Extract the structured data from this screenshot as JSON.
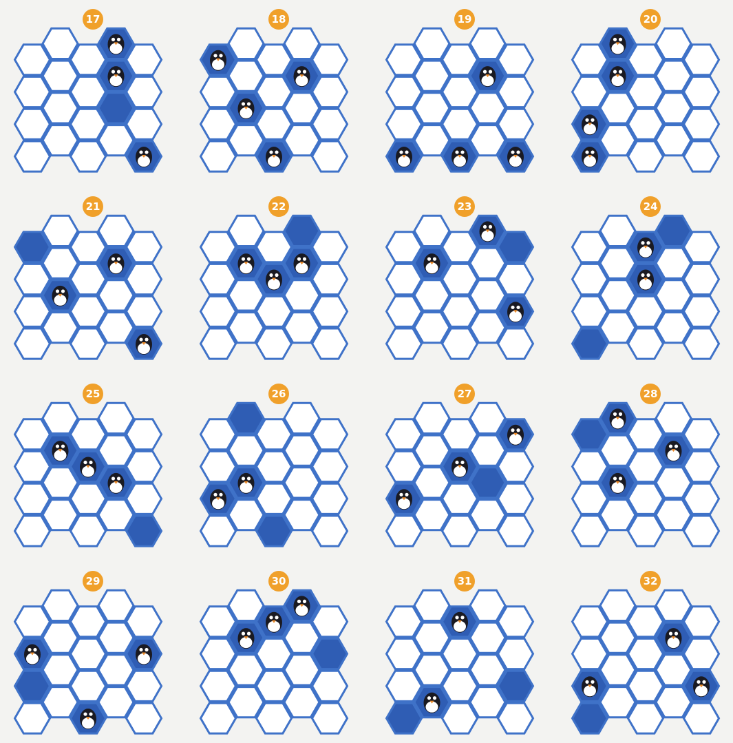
{
  "puzzles": [
    {
      "number": 17
    },
    {
      "number": 18
    },
    {
      "number": 19
    },
    {
      "number": 20
    },
    {
      "number": 21
    },
    {
      "number": 22
    },
    {
      "number": 23
    },
    {
      "number": 24
    },
    {
      "number": 25
    },
    {
      "number": 26
    },
    {
      "number": 27
    },
    {
      "number": 28
    },
    {
      "number": 29
    },
    {
      "number": 30
    },
    {
      "number": 31
    },
    {
      "number": 32
    }
  ]
}
